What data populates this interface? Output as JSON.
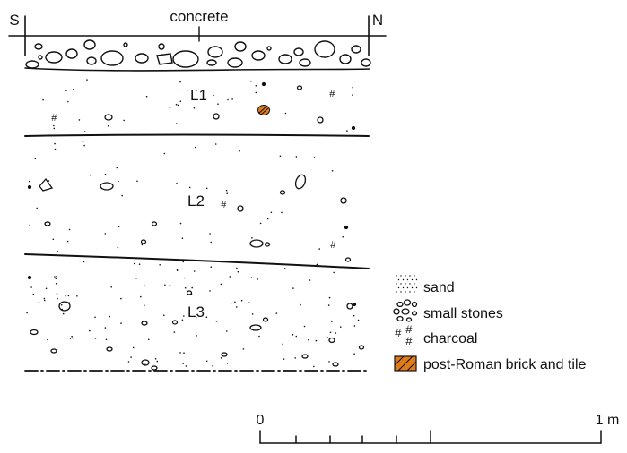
{
  "section": {
    "top_label": "concrete",
    "left_end": "S",
    "right_end": "N",
    "layers": [
      {
        "label": "L1"
      },
      {
        "label": "L2"
      },
      {
        "label": "L3"
      }
    ]
  },
  "legend": {
    "items": [
      {
        "label": "sand",
        "symbol": "sand"
      },
      {
        "label": "small stones",
        "symbol": "small-stones"
      },
      {
        "label": "charcoal",
        "symbol": "charcoal"
      },
      {
        "label": "post-Roman brick and tile",
        "symbol": "brick-tile",
        "color": "#e07b1a"
      }
    ]
  },
  "scale": {
    "start": "0",
    "end": "1 m"
  },
  "colors": {
    "ink": "#111111",
    "brick": "#e07b1a"
  }
}
